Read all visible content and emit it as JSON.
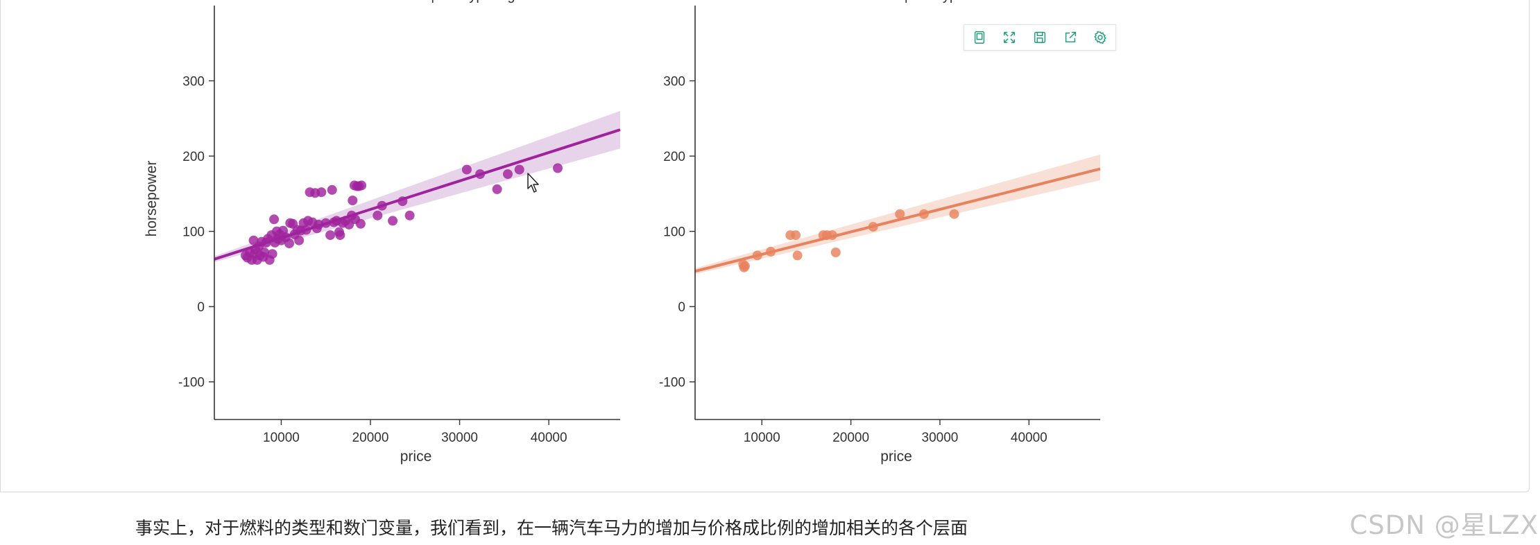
{
  "chart_data": [
    {
      "type": "scatter",
      "title": "num-of-doors = four | fuel-type = gas",
      "xlabel": "price",
      "ylabel": "horsepower",
      "xlim": [
        2500,
        48000
      ],
      "ylim": [
        -150,
        400
      ],
      "xticks": [
        10000,
        20000,
        30000,
        40000
      ],
      "yticks": [
        -100,
        0,
        100,
        200,
        300
      ],
      "color": "#a0239e",
      "band_color": "#e6cfe8",
      "grid": false,
      "regression": {
        "x": [
          2500,
          48000
        ],
        "y": [
          63,
          235
        ],
        "ci_lower_end": 210,
        "ci_upper_end": 260
      },
      "points": [
        [
          6000,
          68
        ],
        [
          6200,
          65
        ],
        [
          6500,
          72
        ],
        [
          6700,
          62
        ],
        [
          6900,
          88
        ],
        [
          7000,
          70
        ],
        [
          7100,
          76
        ],
        [
          7300,
          62
        ],
        [
          7500,
          80
        ],
        [
          7600,
          68
        ],
        [
          7800,
          86
        ],
        [
          8000,
          66
        ],
        [
          8100,
          72
        ],
        [
          8300,
          85
        ],
        [
          8500,
          90
        ],
        [
          8700,
          62
        ],
        [
          8900,
          95
        ],
        [
          9000,
          70
        ],
        [
          9200,
          116
        ],
        [
          9300,
          85
        ],
        [
          9500,
          100
        ],
        [
          9600,
          90
        ],
        [
          9800,
          96
        ],
        [
          10000,
          88
        ],
        [
          10200,
          101
        ],
        [
          10500,
          92
        ],
        [
          10900,
          84
        ],
        [
          11000,
          111
        ],
        [
          11300,
          110
        ],
        [
          11500,
          96
        ],
        [
          11800,
          102
        ],
        [
          12000,
          88
        ],
        [
          12200,
          101
        ],
        [
          12500,
          111
        ],
        [
          12800,
          102
        ],
        [
          13000,
          114
        ],
        [
          13200,
          152
        ],
        [
          13500,
          112
        ],
        [
          13800,
          151
        ],
        [
          14000,
          104
        ],
        [
          14200,
          109
        ],
        [
          14500,
          152
        ],
        [
          15000,
          111
        ],
        [
          15500,
          95
        ],
        [
          15700,
          155
        ],
        [
          15900,
          112
        ],
        [
          16200,
          114
        ],
        [
          16500,
          99
        ],
        [
          16600,
          95
        ],
        [
          16900,
          111
        ],
        [
          17200,
          114
        ],
        [
          17600,
          109
        ],
        [
          17900,
          121
        ],
        [
          18000,
          141
        ],
        [
          18200,
          161
        ],
        [
          18300,
          116
        ],
        [
          18500,
          160
        ],
        [
          18700,
          160
        ],
        [
          18900,
          110
        ],
        [
          19000,
          161
        ],
        [
          20800,
          121
        ],
        [
          21300,
          134
        ],
        [
          22500,
          114
        ],
        [
          23600,
          140
        ],
        [
          24400,
          121
        ],
        [
          30800,
          182
        ],
        [
          32300,
          176
        ],
        [
          34200,
          156
        ],
        [
          35400,
          176
        ],
        [
          36700,
          182
        ],
        [
          41000,
          184
        ]
      ]
    },
    {
      "type": "scatter",
      "title": "num-of-doors = four | fuel-type = diesel",
      "xlabel": "price",
      "ylabel": "",
      "xlim": [
        2500,
        48000
      ],
      "ylim": [
        -150,
        400
      ],
      "xticks": [
        10000,
        20000,
        30000,
        40000
      ],
      "yticks": [
        -100,
        0,
        100,
        200,
        300
      ],
      "color": "#e8825e",
      "band_color": "#f8ddd2",
      "grid": false,
      "regression": {
        "x": [
          2500,
          48000
        ],
        "y": [
          47,
          183
        ],
        "ci_lower_end": 168,
        "ci_upper_end": 202
      },
      "points": [
        [
          7900,
          56
        ],
        [
          8000,
          52
        ],
        [
          8100,
          54
        ],
        [
          9500,
          68
        ],
        [
          11000,
          73
        ],
        [
          13200,
          95
        ],
        [
          13800,
          95
        ],
        [
          14000,
          68
        ],
        [
          16900,
          95
        ],
        [
          17300,
          95
        ],
        [
          17900,
          95
        ],
        [
          18300,
          72
        ],
        [
          22500,
          106
        ],
        [
          25500,
          123
        ],
        [
          28200,
          123
        ],
        [
          31600,
          123
        ]
      ]
    }
  ],
  "toolbar": {
    "icons": [
      "bookmark-icon",
      "expand-icon",
      "save-icon",
      "share-icon",
      "gear-icon"
    ],
    "icon_color": "#1e9f7a"
  },
  "caption": "事实上，对于燃料的类型和数门变量，我们看到，在一辆汽车马力的增加与价格成比例的增加相关的各个层面",
  "watermark": "CSDN @星LZX"
}
